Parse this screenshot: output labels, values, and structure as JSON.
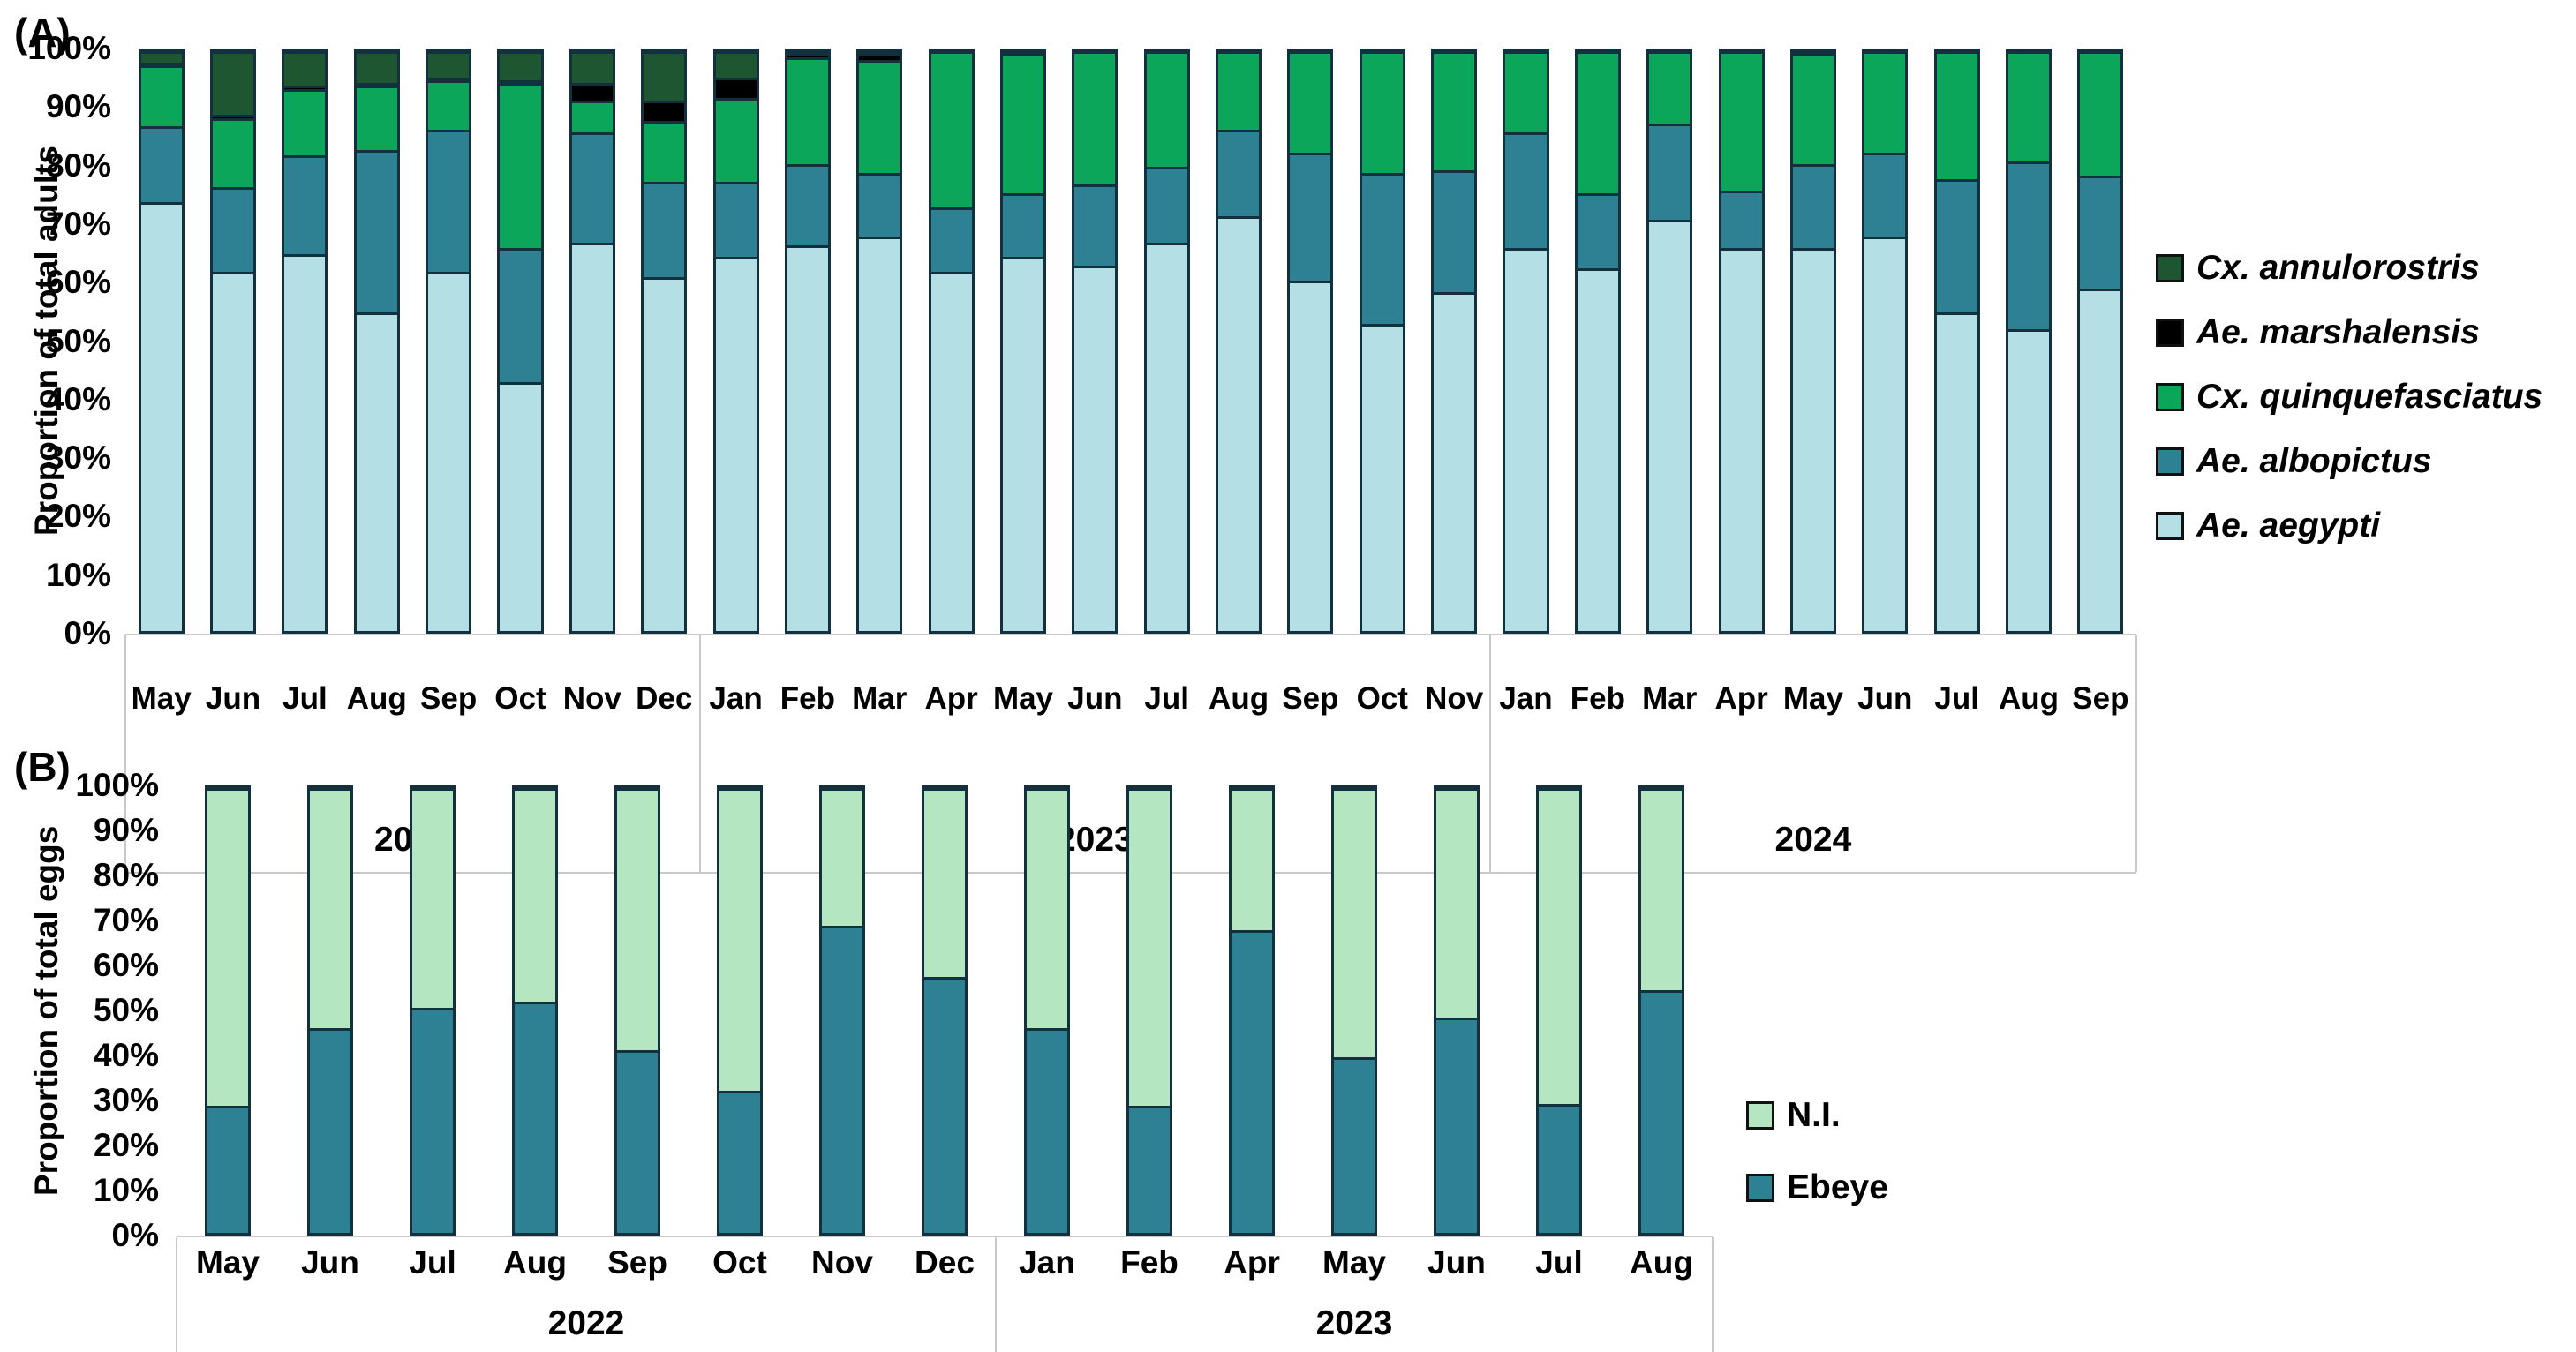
{
  "chart_data": [
    {
      "type": "bar",
      "stacked": true,
      "panel_label": "(A)",
      "ylabel": "Proportion of total adults",
      "ylim": [
        0,
        100
      ],
      "grid": false,
      "legend_position": "right",
      "yticks": [
        "100%",
        "90%",
        "80%",
        "70%",
        "60%",
        "50%",
        "40%",
        "30%",
        "20%",
        "10%",
        "0%"
      ],
      "categories": [
        "May",
        "Jun",
        "Jul",
        "Aug",
        "Sep",
        "Oct",
        "Nov",
        "Dec",
        "Jan",
        "Feb",
        "Mar",
        "Apr",
        "May",
        "Jun",
        "Jul",
        "Aug",
        "Sep",
        "Oct",
        "Nov",
        "Jan",
        "Feb",
        "Mar",
        "Apr",
        "May",
        "Jun",
        "Jul",
        "Aug",
        "Sep"
      ],
      "year_groups": [
        {
          "label": "2022",
          "count": 8
        },
        {
          "label": "2023",
          "count": 11
        },
        {
          "label": "2024",
          "count": 9
        }
      ],
      "series": [
        {
          "name": "Ae. aegypti",
          "color": "#b3dfe5",
          "values": [
            74,
            62,
            65,
            55,
            62,
            43,
            67,
            61,
            64.5,
            66.5,
            68,
            62,
            64.5,
            63,
            67,
            71.5,
            60.5,
            53,
            58.5,
            66,
            62.5,
            71,
            66,
            66,
            68,
            55,
            52,
            59
          ]
        },
        {
          "name": "Ae. albopictus",
          "color": "#2e8193",
          "values": [
            13,
            14.5,
            17,
            28,
            24.5,
            23,
            19,
            16.5,
            13,
            14,
            11,
            11,
            11,
            14,
            13,
            15,
            22,
            26,
            21,
            20,
            13,
            16.5,
            10,
            14.5,
            14.5,
            23,
            29,
            19.5
          ]
        },
        {
          "name": "Cx. quinquefasciatus",
          "color": "#0ba65a",
          "values": [
            10.5,
            12,
            11.5,
            11,
            8.5,
            28.5,
            5.5,
            10.5,
            14.5,
            18.5,
            19.5,
            27,
            24,
            23,
            20,
            13.5,
            17.5,
            21,
            20.5,
            14,
            24.5,
            12.5,
            24,
            19,
            17.5,
            22,
            19,
            21.5
          ]
        },
        {
          "name": "Ae. marshalensis",
          "color": "#000000",
          "values": [
            0.5,
            0.5,
            0.5,
            0.5,
            0.5,
            0.5,
            3,
            3.5,
            3.5,
            0.5,
            1,
            0,
            0.5,
            0,
            0,
            0,
            0,
            0,
            0,
            0,
            0,
            0,
            0,
            0.5,
            0,
            0,
            0,
            0
          ]
        },
        {
          "name": "Cx. annulorostris",
          "color": "#1d5631",
          "values": [
            2,
            11,
            6,
            5.5,
            4.5,
            5,
            5.5,
            8.5,
            4.5,
            0.5,
            0.5,
            0,
            0,
            0,
            0,
            0,
            0,
            0,
            0,
            0,
            0,
            0,
            0,
            0,
            0,
            0,
            0,
            0
          ]
        }
      ]
    },
    {
      "type": "bar",
      "stacked": true,
      "panel_label": "(B)",
      "ylabel": "Proportion of total eggs",
      "ylim": [
        0,
        100
      ],
      "grid": false,
      "legend_position": "right",
      "yticks": [
        "100%",
        "90%",
        "80%",
        "70%",
        "60%",
        "50%",
        "40%",
        "30%",
        "20%",
        "10%",
        "0%"
      ],
      "categories": [
        "May",
        "Jun",
        "Jul",
        "Aug",
        "Sep",
        "Oct",
        "Nov",
        "Dec",
        "Jan",
        "Feb",
        "Apr",
        "May",
        "Jun",
        "Jul",
        "Aug"
      ],
      "year_groups": [
        {
          "label": "2022",
          "count": 8
        },
        {
          "label": "2023",
          "count": 7
        }
      ],
      "series": [
        {
          "name": "Ebeye",
          "color": "#2e8193",
          "values": [
            28.5,
            46,
            50.5,
            52,
            41,
            32,
            69,
            57.5,
            46,
            28.5,
            68,
            39.5,
            48.5,
            29,
            54.5
          ]
        },
        {
          "name": "N.I.",
          "color": "#b5e6c2",
          "values": [
            71.5,
            54,
            49.5,
            48,
            59,
            68,
            31,
            42.5,
            54,
            71.5,
            32,
            60.5,
            51.5,
            71,
            45.5
          ]
        }
      ]
    }
  ]
}
